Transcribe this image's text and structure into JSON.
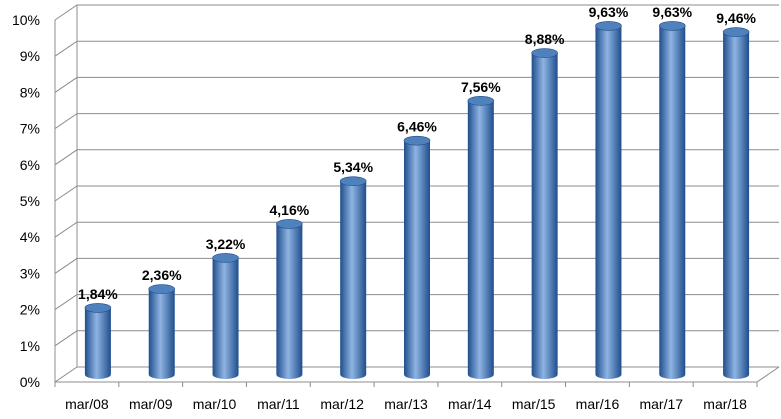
{
  "chart_data": {
    "type": "bar",
    "title": "",
    "xlabel": "",
    "ylabel": "",
    "categories": [
      "mar/08",
      "mar/09",
      "mar/10",
      "mar/11",
      "mar/12",
      "mar/13",
      "mar/14",
      "mar/15",
      "mar/16",
      "mar/17",
      "mar/18"
    ],
    "values": [
      1.84,
      2.36,
      3.22,
      4.16,
      5.34,
      6.46,
      7.56,
      8.88,
      9.63,
      9.63,
      9.46
    ],
    "data_labels": [
      "1,84%",
      "2,36%",
      "3,22%",
      "4,16%",
      "5,34%",
      "6,46%",
      "7,56%",
      "8,88%",
      "9,63%",
      "9,63%",
      "9,46%"
    ],
    "ylim": [
      0,
      10
    ],
    "y_ticks": [
      0,
      1,
      2,
      3,
      4,
      5,
      6,
      7,
      8,
      9,
      10
    ],
    "y_tick_labels": [
      "0%",
      "1%",
      "2%",
      "3%",
      "4%",
      "5%",
      "6%",
      "7%",
      "8%",
      "9%",
      "10%"
    ],
    "grid": true,
    "legend": "none",
    "style": "3d-cylinder",
    "colors": {
      "bar_dark": "#1f4e8c",
      "bar_mid": "#4f81bd",
      "bar_light": "#8fb4e3",
      "grid": "#8c8c8c"
    }
  }
}
